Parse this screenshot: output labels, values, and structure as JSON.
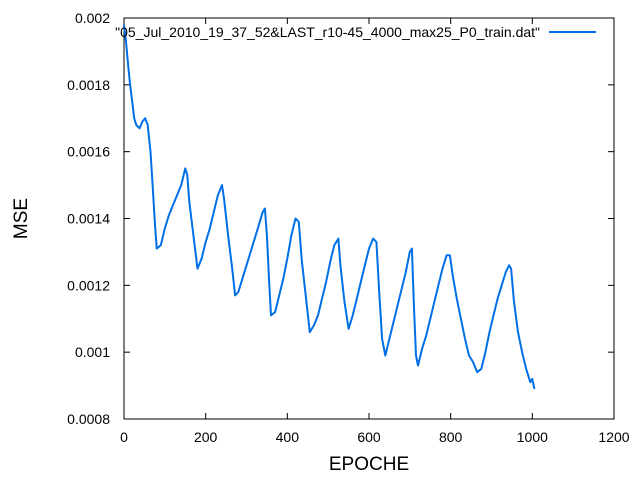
{
  "chart_data": {
    "type": "line",
    "title": "",
    "xlabel": "EPOCHE",
    "ylabel": "MSE",
    "xlim": [
      0,
      1200
    ],
    "ylim": [
      0.0008,
      0.002
    ],
    "x_ticks": [
      0,
      200,
      400,
      600,
      800,
      1000,
      1200
    ],
    "x_tick_labels": [
      "0",
      "200",
      "400",
      "600",
      "800",
      "1000",
      "1200"
    ],
    "y_ticks": [
      0.0008,
      0.001,
      0.0012,
      0.0014,
      0.0016,
      0.0018,
      0.002
    ],
    "y_tick_labels": [
      "0.0008",
      "0.001",
      "0.0012",
      "0.0014",
      "0.0016",
      "0.0018",
      "0.002"
    ],
    "grid": false,
    "legend": "top-right",
    "series": [
      {
        "name": "\"05_Jul_2010_19_37_52&LAST_r10-45_4000_max25_P0_train.dat\"",
        "color": "#0070e8",
        "points": [
          [
            0,
            0.00198
          ],
          [
            5,
            0.00193
          ],
          [
            10,
            0.00186
          ],
          [
            15,
            0.0018
          ],
          [
            20,
            0.00175
          ],
          [
            25,
            0.0017
          ],
          [
            30,
            0.00168
          ],
          [
            38,
            0.00167
          ],
          [
            45,
            0.00169
          ],
          [
            52,
            0.0017
          ],
          [
            58,
            0.00168
          ],
          [
            65,
            0.0016
          ],
          [
            70,
            0.0015
          ],
          [
            75,
            0.0014
          ],
          [
            80,
            0.00131
          ],
          [
            90,
            0.00132
          ],
          [
            100,
            0.00137
          ],
          [
            110,
            0.00141
          ],
          [
            120,
            0.00144
          ],
          [
            130,
            0.00147
          ],
          [
            140,
            0.0015
          ],
          [
            150,
            0.00155
          ],
          [
            155,
            0.00153
          ],
          [
            160,
            0.00145
          ],
          [
            170,
            0.00135
          ],
          [
            180,
            0.00125
          ],
          [
            190,
            0.00128
          ],
          [
            200,
            0.00133
          ],
          [
            210,
            0.00137
          ],
          [
            220,
            0.00142
          ],
          [
            230,
            0.00147
          ],
          [
            240,
            0.0015
          ],
          [
            245,
            0.00146
          ],
          [
            255,
            0.00135
          ],
          [
            265,
            0.00125
          ],
          [
            272,
            0.00117
          ],
          [
            280,
            0.00118
          ],
          [
            290,
            0.00122
          ],
          [
            300,
            0.00126
          ],
          [
            310,
            0.0013
          ],
          [
            320,
            0.00134
          ],
          [
            330,
            0.00138
          ],
          [
            340,
            0.00142
          ],
          [
            345,
            0.00143
          ],
          [
            350,
            0.00135
          ],
          [
            355,
            0.00122
          ],
          [
            360,
            0.00111
          ],
          [
            370,
            0.00112
          ],
          [
            380,
            0.00117
          ],
          [
            390,
            0.00122
          ],
          [
            400,
            0.00128
          ],
          [
            410,
            0.00135
          ],
          [
            420,
            0.0014
          ],
          [
            428,
            0.00139
          ],
          [
            435,
            0.00128
          ],
          [
            445,
            0.00117
          ],
          [
            455,
            0.00106
          ],
          [
            465,
            0.00108
          ],
          [
            475,
            0.00111
          ],
          [
            485,
            0.00116
          ],
          [
            495,
            0.00121
          ],
          [
            505,
            0.00127
          ],
          [
            515,
            0.00132
          ],
          [
            525,
            0.00134
          ],
          [
            530,
            0.00126
          ],
          [
            540,
            0.00115
          ],
          [
            550,
            0.00107
          ],
          [
            560,
            0.00111
          ],
          [
            570,
            0.00116
          ],
          [
            580,
            0.00121
          ],
          [
            590,
            0.00126
          ],
          [
            600,
            0.00131
          ],
          [
            610,
            0.00134
          ],
          [
            618,
            0.00133
          ],
          [
            625,
            0.00118
          ],
          [
            632,
            0.00104
          ],
          [
            640,
            0.00099
          ],
          [
            650,
            0.00104
          ],
          [
            660,
            0.00109
          ],
          [
            670,
            0.00114
          ],
          [
            680,
            0.00119
          ],
          [
            690,
            0.00124
          ],
          [
            700,
            0.0013
          ],
          [
            705,
            0.00131
          ],
          [
            710,
            0.00114
          ],
          [
            715,
            0.00099
          ],
          [
            720,
            0.00096
          ],
          [
            730,
            0.00101
          ],
          [
            740,
            0.00105
          ],
          [
            750,
            0.0011
          ],
          [
            760,
            0.00115
          ],
          [
            770,
            0.0012
          ],
          [
            780,
            0.00125
          ],
          [
            790,
            0.00129
          ],
          [
            798,
            0.00129
          ],
          [
            805,
            0.00123
          ],
          [
            815,
            0.00116
          ],
          [
            825,
            0.0011
          ],
          [
            835,
            0.00104
          ],
          [
            845,
            0.00099
          ],
          [
            855,
            0.00097
          ],
          [
            865,
            0.00094
          ],
          [
            875,
            0.00095
          ],
          [
            885,
            0.001
          ],
          [
            895,
            0.00106
          ],
          [
            905,
            0.00111
          ],
          [
            915,
            0.00116
          ],
          [
            925,
            0.0012
          ],
          [
            935,
            0.00124
          ],
          [
            943,
            0.00126
          ],
          [
            948,
            0.00125
          ],
          [
            955,
            0.00115
          ],
          [
            965,
            0.00106
          ],
          [
            975,
            0.001
          ],
          [
            985,
            0.00095
          ],
          [
            995,
            0.00091
          ],
          [
            1000,
            0.00092
          ],
          [
            1005,
            0.00089
          ]
        ]
      }
    ]
  }
}
